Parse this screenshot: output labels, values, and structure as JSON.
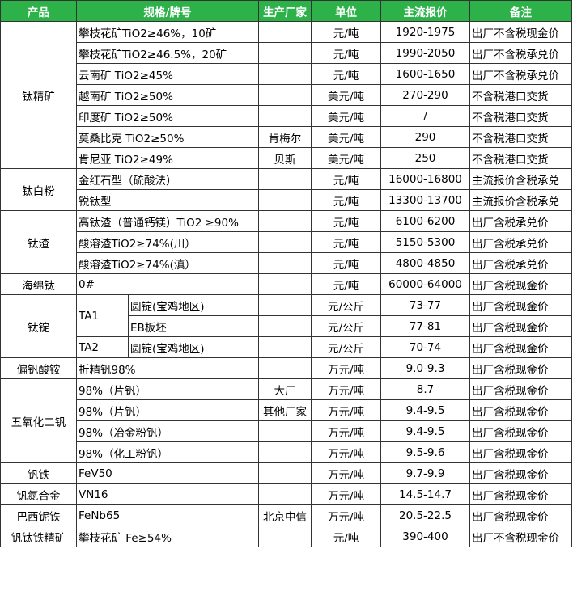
{
  "table": {
    "header": [
      "产品",
      "规格/牌号",
      "生产厂家",
      "单位",
      "主流报价",
      "备注"
    ],
    "groups": [
      {
        "product": "钛精矿",
        "rows": [
          {
            "spec": "攀枝花矿TiO2≥46%，10矿",
            "unit": "元/吨",
            "price": "1920-1975",
            "note": "出厂不含税现金价"
          },
          {
            "spec": "攀枝花矿TiO2≥46.5%，20矿",
            "unit": "元/吨",
            "price": "1990-2050",
            "note": "出厂不含税承兑价"
          },
          {
            "spec": "云南矿 TiO2≥45%",
            "unit": "元/吨",
            "price": "1600-1650",
            "note": "出厂不含税承兑价"
          },
          {
            "spec": "越南矿 TiO2≥50%",
            "unit": "美元/吨",
            "price": "270-290",
            "note": "不含税港口交货"
          },
          {
            "spec": "印度矿 TiO2≥50%",
            "unit": "美元/吨",
            "price": "/",
            "note": "不含税港口交货"
          },
          {
            "spec": "莫桑比克 TiO2≥50%",
            "maker": "肯梅尔",
            "unit": "美元/吨",
            "price": "290",
            "note": "不含税港口交货"
          },
          {
            "spec": "肯尼亚 TiO2≥49%",
            "maker": "贝斯",
            "unit": "美元/吨",
            "price": "250",
            "note": "不含税港口交货"
          }
        ]
      },
      {
        "product": "钛白粉",
        "rows": [
          {
            "spec": "金红石型（硫酸法）",
            "unit": "元/吨",
            "price": "16000-16800",
            "note": "主流报价含税承兑"
          },
          {
            "spec": "锐钛型",
            "unit": "元/吨",
            "price": "13300-13700",
            "note": "主流报价含税承兑"
          }
        ]
      },
      {
        "product": "钛渣",
        "rows": [
          {
            "spec": "高钛渣（普通钙镁）TiO2 ≥90%",
            "unit": "元/吨",
            "price": "6100-6200",
            "note": "出厂含税承兑价"
          },
          {
            "spec": "酸溶渣TiO2≥74%(川）",
            "unit": "元/吨",
            "price": "5150-5300",
            "note": "出厂含税承兑价"
          },
          {
            "spec": "酸溶渣TiO2≥74%(滇）",
            "unit": "元/吨",
            "price": "4800-4850",
            "note": "出厂含税承兑价"
          }
        ]
      },
      {
        "product": "海绵钛",
        "rows": [
          {
            "spec": "0#",
            "unit": "元/吨",
            "price": "60000-64000",
            "note": "出厂含税现金价"
          }
        ]
      },
      {
        "product": "钛锭",
        "rows": [
          {
            "grade": "TA1",
            "form": "圆锭(宝鸡地区)",
            "unit": "元/公斤",
            "price": "73-77",
            "note": "出厂含税现金价"
          },
          {
            "form": "EB板坯",
            "unit": "元/公斤",
            "price": "77-81",
            "note": "出厂含税现金价"
          },
          {
            "grade": "TA2",
            "form": "圆锭(宝鸡地区)",
            "unit": "元/公斤",
            "price": "70-74",
            "note": "出厂含税现金价"
          }
        ]
      },
      {
        "product": "偏钒酸铵",
        "rows": [
          {
            "spec": "折精钒98%",
            "unit": "万元/吨",
            "price": "9.0-9.3",
            "note": "出厂含税现金价"
          }
        ]
      },
      {
        "product": "五氧化二钒",
        "rows": [
          {
            "spec": "98%（片钒）",
            "maker": "大厂",
            "unit": "万元/吨",
            "price": "8.7",
            "note": "出厂含税现金价"
          },
          {
            "spec": "98%（片钒）",
            "maker": "其他厂家",
            "unit": "万元/吨",
            "price": "9.4-9.5",
            "note": "出厂含税现金价"
          },
          {
            "spec": "98%（冶金粉钒）",
            "unit": "万元/吨",
            "price": "9.4-9.5",
            "note": "出厂含税现金价"
          },
          {
            "spec": "98%（化工粉钒）",
            "unit": "万元/吨",
            "price": "9.5-9.6",
            "note": "出厂含税现金价"
          }
        ]
      },
      {
        "product": "钒铁",
        "rows": [
          {
            "spec": "FeV50",
            "unit": "万元/吨",
            "price": "9.7-9.9",
            "note": "出厂含税现金价"
          }
        ]
      },
      {
        "product": "钒氮合金",
        "rows": [
          {
            "spec": "VN16",
            "unit": "万元/吨",
            "price": "14.5-14.7",
            "note": "出厂含税现金价"
          }
        ]
      },
      {
        "product": "巴西铌铁",
        "rows": [
          {
            "spec": "FeNb65",
            "maker": "北京中信",
            "unit": "万元/吨",
            "price": "20.5-22.5",
            "note": "出厂含税现金价"
          }
        ]
      },
      {
        "product": "钒钛铁精矿",
        "rows": [
          {
            "spec": "攀枝花矿 Fe≥54%",
            "unit": "元/吨",
            "price": "390-400",
            "note": "出厂不含税现金价"
          }
        ]
      }
    ]
  }
}
